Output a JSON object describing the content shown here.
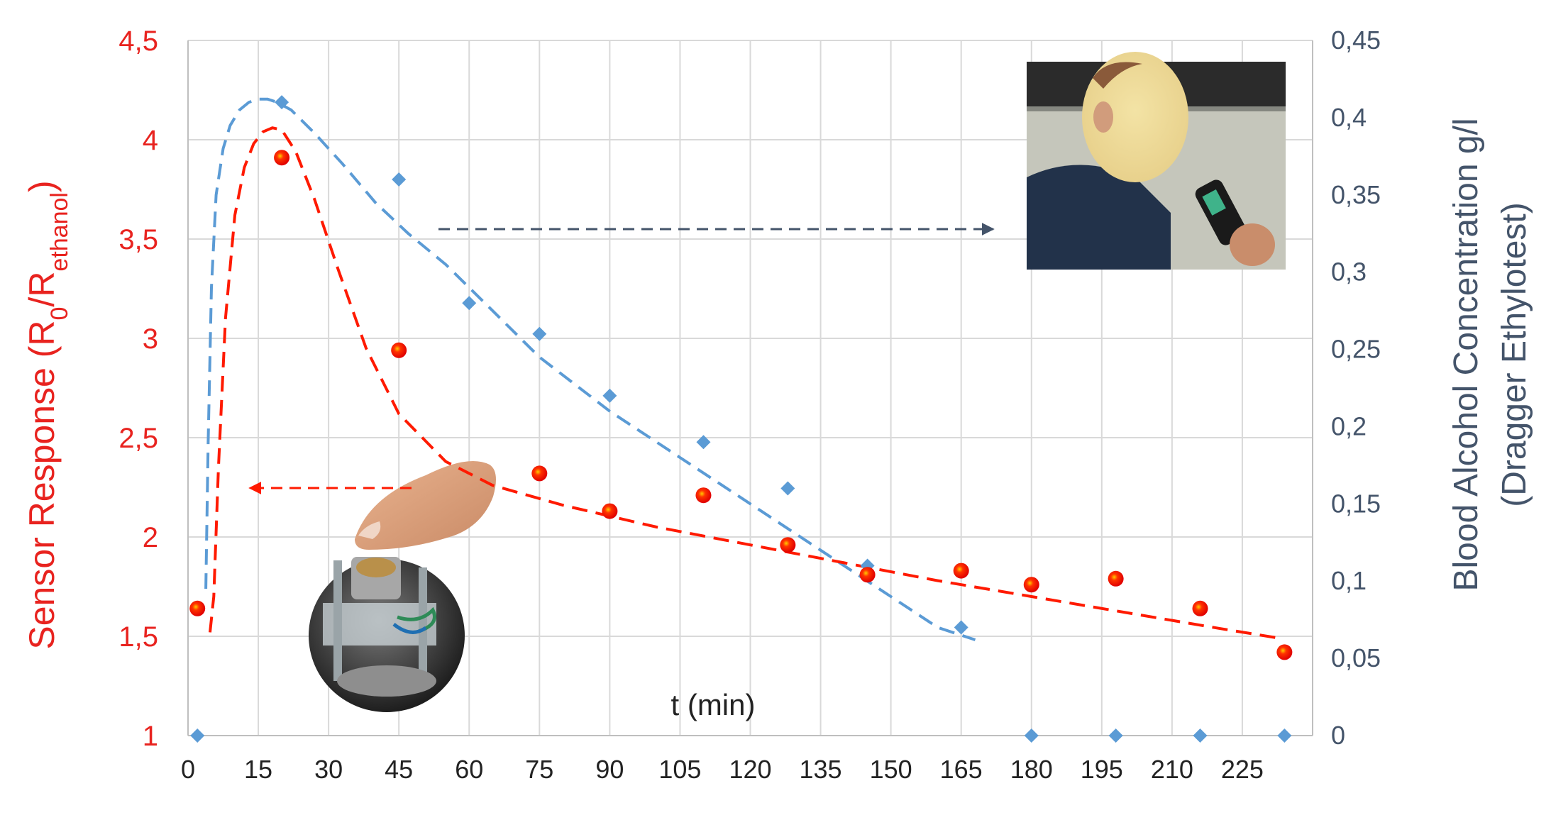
{
  "chart_data": {
    "type": "scatter",
    "title": "",
    "xlabel": "t (min)",
    "ylabel_left": {
      "main": "Sensor Response (R",
      "sub1": "0",
      "mid": "/R",
      "sub2": "ethanol",
      "end": ")"
    },
    "ylabel_right": [
      "Blood Alcohol Concentration g/l",
      "(Dragger Ethylotest)"
    ],
    "xlim": [
      0,
      240
    ],
    "ylim_left": [
      1,
      4.5
    ],
    "ylim_right": [
      0,
      0.45
    ],
    "x_ticks": [
      "0",
      "15",
      "30",
      "45",
      "60",
      "75",
      "90",
      "105",
      "120",
      "135",
      "150",
      "165",
      "180",
      "195",
      "210",
      "225"
    ],
    "y_left_ticks": [
      "1",
      "1,5",
      "2",
      "2,5",
      "3",
      "3,5",
      "4",
      "4,5"
    ],
    "y_right_ticks": [
      "0",
      "0,05",
      "0,1",
      "0,15",
      "0,2",
      "0,25",
      "0,3",
      "0,35",
      "0,4",
      "0,45"
    ],
    "grid": true,
    "series": [
      {
        "axis": "left",
        "color": "#ff1a00",
        "marker": "circle",
        "points": [
          [
            2,
            1.64
          ],
          [
            20,
            3.91
          ],
          [
            45,
            2.94
          ],
          [
            75,
            2.32
          ],
          [
            90,
            2.13
          ],
          [
            110,
            2.21
          ],
          [
            128,
            1.96
          ],
          [
            145,
            1.81
          ],
          [
            165,
            1.83
          ],
          [
            180,
            1.76
          ],
          [
            198,
            1.79
          ],
          [
            216,
            1.64
          ],
          [
            234,
            1.42
          ]
        ],
        "trend": [
          [
            4.7,
            1.52
          ],
          [
            5.5,
            1.7
          ],
          [
            6.5,
            2.35
          ],
          [
            8,
            3.1
          ],
          [
            10,
            3.62
          ],
          [
            12,
            3.86
          ],
          [
            14,
            3.98
          ],
          [
            16,
            4.04
          ],
          [
            18,
            4.06
          ],
          [
            20,
            4.05
          ],
          [
            23,
            3.94
          ],
          [
            27,
            3.7
          ],
          [
            32,
            3.35
          ],
          [
            38,
            2.95
          ],
          [
            45,
            2.62
          ],
          [
            55,
            2.38
          ],
          [
            65,
            2.26
          ],
          [
            80,
            2.16
          ],
          [
            100,
            2.05
          ],
          [
            120,
            1.96
          ],
          [
            140,
            1.87
          ],
          [
            160,
            1.78
          ],
          [
            180,
            1.7
          ],
          [
            200,
            1.62
          ],
          [
            220,
            1.54
          ],
          [
            233,
            1.49
          ]
        ]
      },
      {
        "axis": "right",
        "color": "#5b9bd5",
        "marker": "diamond",
        "points": [
          [
            2,
            0
          ],
          [
            20,
            0.41
          ],
          [
            45,
            0.36
          ],
          [
            60,
            0.28
          ],
          [
            75,
            0.26
          ],
          [
            90,
            0.22
          ],
          [
            110,
            0.19
          ],
          [
            128,
            0.16
          ],
          [
            145,
            0.11
          ],
          [
            165,
            0.07
          ],
          [
            180,
            0
          ],
          [
            198,
            0
          ],
          [
            216,
            0
          ],
          [
            234,
            0
          ]
        ],
        "trend": [
          [
            3.8,
            0.095
          ],
          [
            4.3,
            0.19
          ],
          [
            5,
            0.29
          ],
          [
            6,
            0.35
          ],
          [
            7.5,
            0.38
          ],
          [
            9,
            0.395
          ],
          [
            11,
            0.405
          ],
          [
            13,
            0.41
          ],
          [
            15,
            0.412
          ],
          [
            17,
            0.412
          ],
          [
            19,
            0.41
          ],
          [
            22,
            0.405
          ],
          [
            27,
            0.39
          ],
          [
            33,
            0.37
          ],
          [
            40,
            0.345
          ],
          [
            47,
            0.325
          ],
          [
            55,
            0.305
          ],
          [
            65,
            0.275
          ],
          [
            75,
            0.245
          ],
          [
            90,
            0.21
          ],
          [
            105,
            0.18
          ],
          [
            120,
            0.15
          ],
          [
            135,
            0.12
          ],
          [
            150,
            0.09
          ],
          [
            160,
            0.07
          ],
          [
            168,
            0.062
          ]
        ]
      }
    ]
  }
}
